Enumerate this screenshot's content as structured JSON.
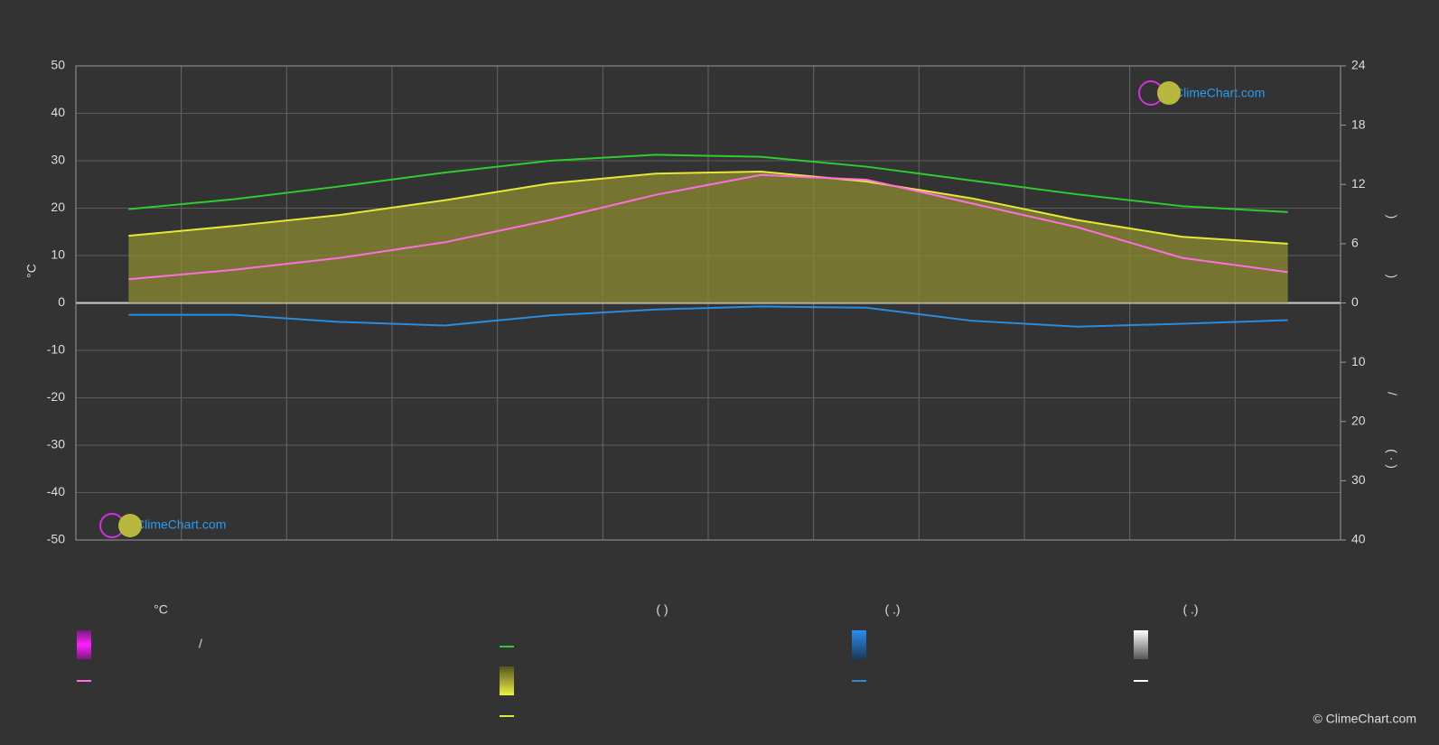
{
  "chart_data": {
    "type": "line",
    "y_label": "°C",
    "y2_labels": [
      ")",
      ")",
      "/",
      "( · )"
    ],
    "watermarks": [
      "ClimeChart.com",
      "ClimeChart.com"
    ],
    "copyright": "© ClimeChart.com",
    "legend_headers": [
      "°C",
      "(           )",
      "(   .)",
      "(   .)"
    ],
    "legend_texts": [
      "/"
    ],
    "categories": [
      null,
      null,
      null,
      null,
      null,
      null,
      null,
      null,
      null,
      null,
      null,
      null
    ],
    "ylim": [
      -50,
      50
    ],
    "yticks": [
      -50,
      -40,
      -30,
      -20,
      -10,
      0,
      10,
      20,
      30,
      40,
      50
    ],
    "y2lim": [
      0,
      24
    ],
    "y2ticks": [
      0,
      6,
      12,
      18,
      24
    ],
    "y3lim": [
      0,
      40
    ],
    "y3ticks": [
      10,
      20,
      30,
      40
    ],
    "y3_direction": "down",
    "grid": true,
    "series": [
      {
        "color": "#2ecc2e",
        "axis": "y2",
        "values": [
          9.5,
          10.5,
          11.8,
          13.2,
          14.4,
          15.0,
          14.8,
          13.8,
          12.4,
          11.0,
          9.8,
          9.2
        ]
      },
      {
        "color": "#e8e83a",
        "axis": "y2",
        "fill": "#8c8c32",
        "values": [
          6.8,
          7.8,
          8.9,
          10.4,
          12.1,
          13.1,
          13.3,
          12.3,
          10.6,
          8.4,
          6.7,
          6.0
        ]
      },
      {
        "color": "#ff6ee0",
        "axis": "y",
        "values": [
          5,
          7,
          9.5,
          12.8,
          17.5,
          22.8,
          27,
          26,
          21,
          16,
          9.5,
          6.5
        ]
      },
      {
        "color": "#2a8cdc",
        "axis": "y3",
        "values": [
          2,
          2,
          3.2,
          3.8,
          2.1,
          1.1,
          0.6,
          0.8,
          3.0,
          4.0,
          3.5,
          2.9
        ]
      }
    ]
  }
}
